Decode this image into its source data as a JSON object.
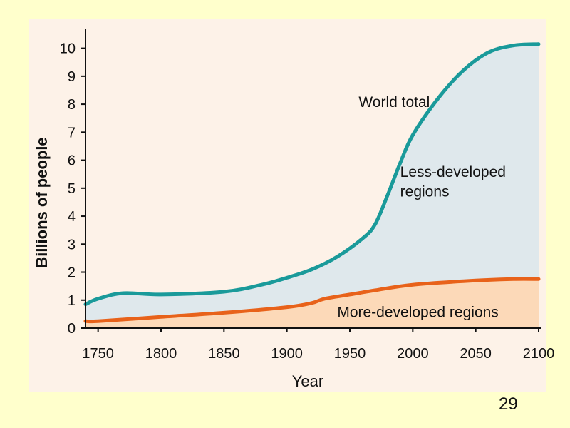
{
  "page": {
    "number": "29"
  },
  "colors": {
    "background": "#ffffcc",
    "panel": "#fdf2e8",
    "world_line": "#1a9a9a",
    "world_fill": "#dfe8ec",
    "more_line": "#e8621a",
    "more_fill": "#fcd9b8",
    "axis": "#111111"
  },
  "chart_data": {
    "type": "area",
    "title": "",
    "xlabel": "Year",
    "ylabel": "Billions of people",
    "xlim": [
      1740,
      2100
    ],
    "ylim": [
      0,
      10.5
    ],
    "xticks": [
      1750,
      1800,
      1850,
      1900,
      1950,
      2000,
      2050,
      2100
    ],
    "yticks": [
      0,
      1,
      2,
      3,
      4,
      5,
      6,
      7,
      8,
      9,
      10
    ],
    "series": [
      {
        "name": "World total",
        "x": [
          1740,
          1750,
          1770,
          1800,
          1850,
          1880,
          1900,
          1920,
          1940,
          1960,
          1970,
          1980,
          1990,
          2000,
          2020,
          2040,
          2060,
          2080,
          2100
        ],
        "values": [
          0.85,
          1.05,
          1.25,
          1.2,
          1.3,
          1.55,
          1.8,
          2.1,
          2.55,
          3.2,
          3.7,
          4.75,
          5.9,
          6.9,
          8.2,
          9.2,
          9.85,
          10.1,
          10.15
        ]
      },
      {
        "name": "More-developed regions",
        "x": [
          1740,
          1750,
          1800,
          1850,
          1900,
          1920,
          1930,
          1950,
          1970,
          2000,
          2050,
          2080,
          2100
        ],
        "values": [
          0.25,
          0.25,
          0.4,
          0.55,
          0.75,
          0.9,
          1.05,
          1.2,
          1.35,
          1.55,
          1.7,
          1.75,
          1.75
        ]
      }
    ],
    "annotations": [
      {
        "text": "World total",
        "x": 1957,
        "y": 7.9
      },
      {
        "text": "Less-developed",
        "x": 1990,
        "y": 5.4
      },
      {
        "text": "regions",
        "x": 1990,
        "y": 4.7
      },
      {
        "text": "More-developed regions",
        "x": 1940,
        "y": 0.4
      }
    ]
  }
}
